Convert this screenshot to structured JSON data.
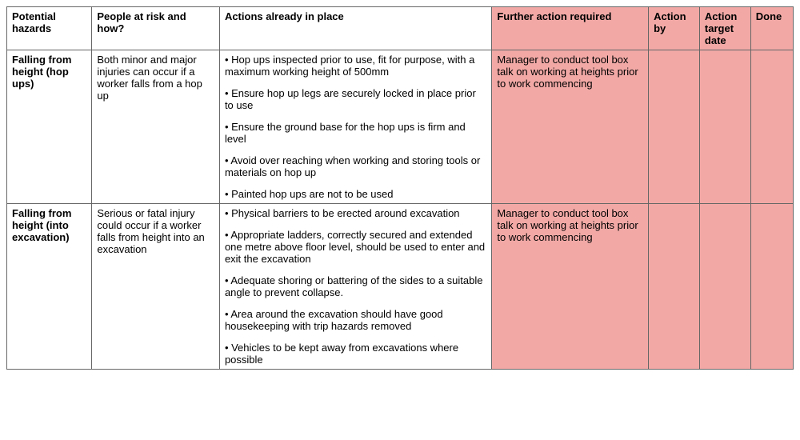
{
  "columns": [
    "Potential hazards",
    "People at risk and how?",
    "Actions already in place",
    "Further action required",
    "Action by",
    "Action target date",
    "Done"
  ],
  "highlight_color": "#f2a9a6",
  "rows": [
    {
      "hazard": "Falling from height (hop ups)",
      "risk": "Both minor and major injuries can occur if a worker falls from a hop up",
      "actions": [
        "Hop ups inspected prior to use, fit for purpose, with a maximum working height of 500mm",
        "Ensure hop up legs are securely locked in place prior to use",
        "Ensure the ground base for the hop ups is firm and level",
        "Avoid over reaching when working and storing tools or materials on hop up",
        "Painted hop ups are not to be used"
      ],
      "further": "Manager to conduct tool box talk on working at heights prior to work commencing",
      "action_by": "",
      "target_date": "",
      "done": ""
    },
    {
      "hazard": "Falling from height (into excavation)",
      "risk": "Serious or fatal injury could occur if a worker falls from height into an excavation",
      "actions": [
        "Physical barriers to be erected around excavation",
        "Appropriate ladders, correctly secured and extended one metre above floor level, should be used to enter and exit the excavation",
        "Adequate shoring or battering of the sides to a suitable angle to prevent collapse.",
        "Area around the excavation should have good housekeeping with trip hazards removed",
        "Vehicles to be kept away from excavations where possible"
      ],
      "further": "Manager to conduct tool box talk on working at heights prior to work commencing",
      "action_by": "",
      "target_date": "",
      "done": ""
    }
  ]
}
